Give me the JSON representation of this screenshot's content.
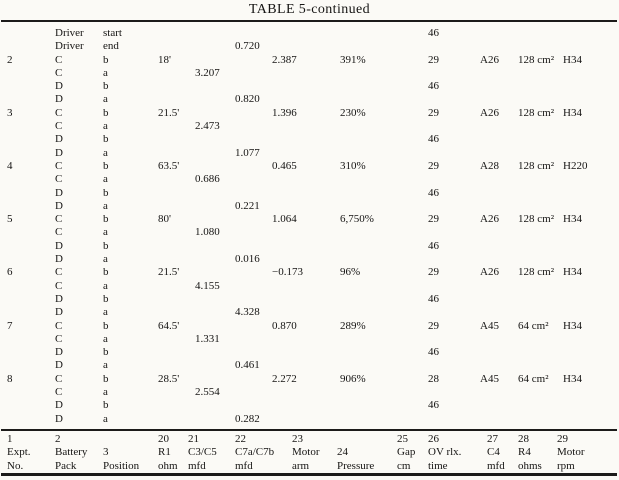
{
  "title": "TABLE 5-continued",
  "table": {
    "rows": [
      [
        "",
        "Driver",
        "start",
        "",
        "",
        "",
        "",
        "",
        "",
        "46",
        "",
        "",
        ""
      ],
      [
        "",
        "Driver",
        "end",
        "",
        "",
        "0.720",
        "",
        "",
        "",
        "",
        "",
        "",
        ""
      ],
      [
        "2",
        "C",
        "b",
        "18'",
        "",
        "",
        "2.387",
        "391%",
        "",
        "29",
        "A26",
        "128 cm²",
        "H34"
      ],
      [
        "",
        "C",
        "a",
        "",
        "3.207",
        "",
        "",
        "",
        "",
        "",
        "",
        "",
        ""
      ],
      [
        "",
        "D",
        "b",
        "",
        "",
        "",
        "",
        "",
        "",
        "46",
        "",
        "",
        ""
      ],
      [
        "",
        "D",
        "a",
        "",
        "",
        "0.820",
        "",
        "",
        "",
        "",
        "",
        "",
        ""
      ],
      [
        "3",
        "C",
        "b",
        "21.5'",
        "",
        "",
        "1.396",
        "230%",
        "",
        "29",
        "A26",
        "128 cm²",
        "H34"
      ],
      [
        "",
        "C",
        "a",
        "",
        "2.473",
        "",
        "",
        "",
        "",
        "",
        "",
        "",
        ""
      ],
      [
        "",
        "D",
        "b",
        "",
        "",
        "",
        "",
        "",
        "",
        "46",
        "",
        "",
        ""
      ],
      [
        "",
        "D",
        "a",
        "",
        "",
        "1.077",
        "",
        "",
        "",
        "",
        "",
        "",
        ""
      ],
      [
        "4",
        "C",
        "b",
        "63.5'",
        "",
        "",
        "0.465",
        "310%",
        "",
        "29",
        "A28",
        "128 cm²",
        "H220"
      ],
      [
        "",
        "C",
        "a",
        "",
        "0.686",
        "",
        "",
        "",
        "",
        "",
        "",
        "",
        ""
      ],
      [
        "",
        "D",
        "b",
        "",
        "",
        "",
        "",
        "",
        "",
        "46",
        "",
        "",
        ""
      ],
      [
        "",
        "D",
        "a",
        "",
        "",
        "0.221",
        "",
        "",
        "",
        "",
        "",
        "",
        ""
      ],
      [
        "5",
        "C",
        "b",
        "80'",
        "",
        "",
        "1.064",
        "6,750%",
        "",
        "29",
        "A26",
        "128 cm²",
        "H34"
      ],
      [
        "",
        "C",
        "a",
        "",
        "1.080",
        "",
        "",
        "",
        "",
        "",
        "",
        "",
        ""
      ],
      [
        "",
        "D",
        "b",
        "",
        "",
        "",
        "",
        "",
        "",
        "46",
        "",
        "",
        ""
      ],
      [
        "",
        "D",
        "a",
        "",
        "",
        "0.016",
        "",
        "",
        "",
        "",
        "",
        "",
        ""
      ],
      [
        "6",
        "C",
        "b",
        "21.5'",
        "",
        "",
        "−0.173",
        "96%",
        "",
        "29",
        "A26",
        "128 cm²",
        "H34"
      ],
      [
        "",
        "C",
        "a",
        "",
        "4.155",
        "",
        "",
        "",
        "",
        "",
        "",
        "",
        ""
      ],
      [
        "",
        "D",
        "b",
        "",
        "",
        "",
        "",
        "",
        "",
        "46",
        "",
        "",
        ""
      ],
      [
        "",
        "D",
        "a",
        "",
        "",
        "4.328",
        "",
        "",
        "",
        "",
        "",
        "",
        ""
      ],
      [
        "7",
        "C",
        "b",
        "64.5'",
        "",
        "",
        "0.870",
        "289%",
        "",
        "29",
        "A45",
        "64 cm²",
        "H34"
      ],
      [
        "",
        "C",
        "a",
        "",
        "1.331",
        "",
        "",
        "",
        "",
        "",
        "",
        "",
        ""
      ],
      [
        "",
        "D",
        "b",
        "",
        "",
        "",
        "",
        "",
        "",
        "46",
        "",
        "",
        ""
      ],
      [
        "",
        "D",
        "a",
        "",
        "",
        "0.461",
        "",
        "",
        "",
        "",
        "",
        "",
        ""
      ],
      [
        "8",
        "C",
        "b",
        "28.5'",
        "",
        "",
        "2.272",
        "906%",
        "",
        "28",
        "A45",
        "64 cm²",
        "H34"
      ],
      [
        "",
        "C",
        "a",
        "",
        "2.554",
        "",
        "",
        "",
        "",
        "",
        "",
        "",
        ""
      ],
      [
        "",
        "D",
        "b",
        "",
        "",
        "",
        "",
        "",
        "",
        "46",
        "",
        "",
        ""
      ],
      [
        "",
        "D",
        "a",
        "",
        "",
        "0.282",
        "",
        "",
        "",
        "",
        "",
        "",
        ""
      ]
    ],
    "footer_columns": [
      [
        "1",
        "Expt.",
        "No."
      ],
      [
        "2",
        "Battery",
        "Pack"
      ],
      [
        "",
        "3",
        "Position"
      ],
      [
        "20",
        "R1",
        "ohm"
      ],
      [
        "21",
        "C3/C5",
        "mfd"
      ],
      [
        "22",
        "C7a/C7b",
        "mfd"
      ],
      [
        "23",
        "Motor",
        "arm"
      ],
      [
        "",
        "24",
        "Pressure"
      ],
      [
        "25",
        "Gap",
        "cm"
      ],
      [
        "26",
        "OV rlx.",
        "time"
      ],
      [
        "27",
        "C4",
        "mfd"
      ],
      [
        "28",
        "R4",
        "ohms"
      ],
      [
        "29",
        "Motor",
        "rpm"
      ]
    ]
  }
}
